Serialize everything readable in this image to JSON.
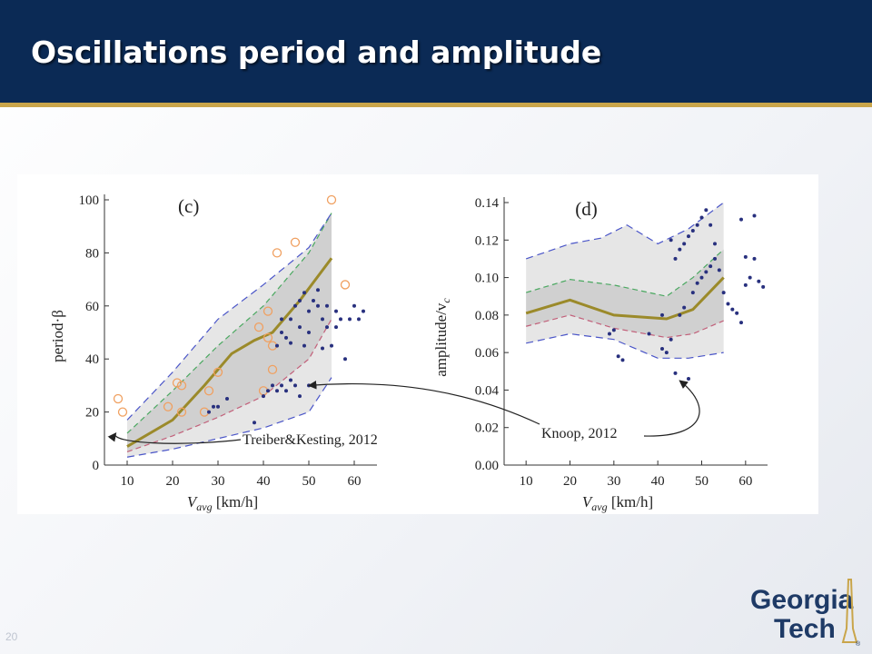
{
  "slide": {
    "title": "Oscillations period and amplitude",
    "page_number": "20"
  },
  "logo": {
    "line1": "Georgia",
    "line2": "Tech"
  },
  "colors": {
    "header": "#0b2a55",
    "gold": "#c9a54a",
    "mean_line": "#9b8a2a",
    "upper_green": "#4aa860",
    "lower_red": "#c2607a",
    "envelope_blue": "#4a55c8",
    "points_blue": "#28307e",
    "points_orange": "#f0a060"
  },
  "chart_data": [
    {
      "id": "c",
      "type": "line",
      "panel_label": "(c)",
      "xlabel": "V",
      "xlabel_sub": "avg",
      "xlabel_unit": "[km/h]",
      "ylabel": "period·β",
      "xlim": [
        5,
        65
      ],
      "ylim": [
        0,
        100
      ],
      "x_ticks": [
        10,
        20,
        30,
        40,
        50,
        60
      ],
      "y_ticks": [
        0,
        20,
        40,
        60,
        80,
        100
      ],
      "band_outer": {
        "upper": [
          [
            10,
            17
          ],
          [
            20,
            35
          ],
          [
            30,
            55
          ],
          [
            40,
            68
          ],
          [
            50,
            82
          ],
          [
            55,
            95
          ]
        ],
        "lower": [
          [
            10,
            3
          ],
          [
            20,
            6
          ],
          [
            30,
            10
          ],
          [
            40,
            14
          ],
          [
            50,
            20
          ],
          [
            55,
            33
          ]
        ]
      },
      "series": [
        {
          "style": "mean",
          "points": [
            [
              10,
              7
            ],
            [
              20,
              17
            ],
            [
              27,
              30
            ],
            [
              33,
              42
            ],
            [
              38,
              47
            ],
            [
              42,
              50
            ],
            [
              48,
              62
            ],
            [
              55,
              78
            ]
          ]
        },
        {
          "style": "upper_green",
          "points": [
            [
              10,
              12
            ],
            [
              20,
              28
            ],
            [
              30,
              45
            ],
            [
              40,
              60
            ],
            [
              50,
              80
            ],
            [
              55,
              95
            ]
          ]
        },
        {
          "style": "lower_red",
          "points": [
            [
              10,
              5
            ],
            [
              20,
              11
            ],
            [
              30,
              18
            ],
            [
              40,
              26
            ],
            [
              50,
              40
            ],
            [
              55,
              55
            ]
          ]
        },
        {
          "style": "envelope_blue",
          "points": [
            [
              10,
              17
            ],
            [
              20,
              35
            ],
            [
              30,
              55
            ],
            [
              40,
              68
            ],
            [
              50,
              82
            ],
            [
              55,
              95
            ]
          ]
        },
        {
          "style": "envelope_blue",
          "points": [
            [
              10,
              3
            ],
            [
              20,
              6
            ],
            [
              30,
              10
            ],
            [
              40,
              14
            ],
            [
              50,
              20
            ],
            [
              55,
              33
            ]
          ]
        }
      ],
      "scatter_orange": [
        [
          8,
          25
        ],
        [
          9,
          20
        ],
        [
          19,
          22
        ],
        [
          21,
          31
        ],
        [
          22,
          20
        ],
        [
          22,
          30
        ],
        [
          27,
          20
        ],
        [
          28,
          28
        ],
        [
          30,
          35
        ],
        [
          39,
          52
        ],
        [
          40,
          28
        ],
        [
          41,
          48
        ],
        [
          42,
          36
        ],
        [
          42,
          45
        ],
        [
          41,
          58
        ],
        [
          43,
          80
        ],
        [
          47,
          84
        ],
        [
          55,
          100
        ],
        [
          58,
          68
        ]
      ],
      "scatter_blue": [
        [
          28,
          20
        ],
        [
          29,
          22
        ],
        [
          30,
          22
        ],
        [
          32,
          25
        ],
        [
          38,
          16
        ],
        [
          40,
          26
        ],
        [
          41,
          28
        ],
        [
          42,
          30
        ],
        [
          43,
          28
        ],
        [
          44,
          30
        ],
        [
          45,
          28
        ],
        [
          46,
          32
        ],
        [
          47,
          30
        ],
        [
          48,
          26
        ],
        [
          50,
          30
        ],
        [
          43,
          45
        ],
        [
          44,
          50
        ],
        [
          45,
          48
        ],
        [
          46,
          55
        ],
        [
          47,
          60
        ],
        [
          48,
          62
        ],
        [
          49,
          65
        ],
        [
          50,
          58
        ],
        [
          51,
          62
        ],
        [
          52,
          60
        ],
        [
          53,
          55
        ],
        [
          54,
          60
        ],
        [
          55,
          45
        ],
        [
          56,
          52
        ],
        [
          58,
          40
        ],
        [
          44,
          55
        ],
        [
          46,
          46
        ],
        [
          48,
          52
        ],
        [
          50,
          50
        ],
        [
          52,
          66
        ],
        [
          54,
          52
        ],
        [
          57,
          55
        ],
        [
          59,
          55
        ],
        [
          60,
          60
        ],
        [
          61,
          55
        ],
        [
          62,
          58
        ],
        [
          56,
          58
        ],
        [
          53,
          44
        ],
        [
          49,
          45
        ]
      ],
      "annotation": "Treiber&Kesting, 2012"
    },
    {
      "id": "d",
      "type": "line",
      "panel_label": "(d)",
      "xlabel": "V",
      "xlabel_sub": "avg",
      "xlabel_unit": "[km/h]",
      "ylabel": "amplitude/v",
      "ylabel_sub": "c",
      "xlim": [
        5,
        65
      ],
      "ylim": [
        0,
        0.14
      ],
      "x_ticks": [
        10,
        20,
        30,
        40,
        50,
        60
      ],
      "y_ticks": [
        "0.00",
        "0.02",
        "0.04",
        "0.06",
        "0.08",
        "0.10",
        "0.12",
        "0.14"
      ],
      "band_outer": {
        "upper": [
          [
            10,
            0.11
          ],
          [
            20,
            0.118
          ],
          [
            27,
            0.121
          ],
          [
            33,
            0.128
          ],
          [
            40,
            0.118
          ],
          [
            47,
            0.126
          ],
          [
            55,
            0.14
          ]
        ],
        "lower": [
          [
            10,
            0.065
          ],
          [
            20,
            0.07
          ],
          [
            30,
            0.067
          ],
          [
            40,
            0.057
          ],
          [
            47,
            0.057
          ],
          [
            55,
            0.06
          ]
        ]
      },
      "series": [
        {
          "style": "mean",
          "points": [
            [
              10,
              0.081
            ],
            [
              20,
              0.088
            ],
            [
              30,
              0.08
            ],
            [
              42,
              0.078
            ],
            [
              48,
              0.083
            ],
            [
              55,
              0.1
            ]
          ]
        },
        {
          "style": "upper_green",
          "points": [
            [
              10,
              0.092
            ],
            [
              20,
              0.099
            ],
            [
              30,
              0.096
            ],
            [
              42,
              0.09
            ],
            [
              48,
              0.1
            ],
            [
              55,
              0.115
            ]
          ]
        },
        {
          "style": "lower_red",
          "points": [
            [
              10,
              0.074
            ],
            [
              20,
              0.08
            ],
            [
              30,
              0.073
            ],
            [
              42,
              0.068
            ],
            [
              48,
              0.07
            ],
            [
              55,
              0.077
            ]
          ]
        },
        {
          "style": "envelope_blue",
          "points": [
            [
              10,
              0.11
            ],
            [
              20,
              0.118
            ],
            [
              27,
              0.121
            ],
            [
              33,
              0.128
            ],
            [
              40,
              0.118
            ],
            [
              47,
              0.126
            ],
            [
              55,
              0.14
            ]
          ]
        },
        {
          "style": "envelope_blue",
          "points": [
            [
              10,
              0.065
            ],
            [
              20,
              0.07
            ],
            [
              30,
              0.067
            ],
            [
              40,
              0.057
            ],
            [
              47,
              0.057
            ],
            [
              55,
              0.06
            ]
          ]
        }
      ],
      "scatter_blue": [
        [
          29,
          0.07
        ],
        [
          30,
          0.072
        ],
        [
          31,
          0.058
        ],
        [
          32,
          0.056
        ],
        [
          38,
          0.07
        ],
        [
          41,
          0.062
        ],
        [
          41,
          0.08
        ],
        [
          42,
          0.06
        ],
        [
          43,
          0.067
        ],
        [
          44,
          0.049
        ],
        [
          45,
          0.08
        ],
        [
          46,
          0.084
        ],
        [
          47,
          0.046
        ],
        [
          48,
          0.092
        ],
        [
          49,
          0.097
        ],
        [
          50,
          0.1
        ],
        [
          51,
          0.103
        ],
        [
          52,
          0.106
        ],
        [
          53,
          0.11
        ],
        [
          54,
          0.104
        ],
        [
          44,
          0.11
        ],
        [
          45,
          0.115
        ],
        [
          46,
          0.118
        ],
        [
          47,
          0.122
        ],
        [
          48,
          0.125
        ],
        [
          49,
          0.128
        ],
        [
          50,
          0.132
        ],
        [
          51,
          0.136
        ],
        [
          52,
          0.128
        ],
        [
          53,
          0.118
        ],
        [
          43,
          0.12
        ],
        [
          56,
          0.086
        ],
        [
          57,
          0.083
        ],
        [
          58,
          0.081
        ],
        [
          59,
          0.076
        ],
        [
          60,
          0.096
        ],
        [
          61,
          0.1
        ],
        [
          62,
          0.11
        ],
        [
          63,
          0.098
        ],
        [
          64,
          0.095
        ],
        [
          59,
          0.131
        ],
        [
          62,
          0.133
        ],
        [
          60,
          0.111
        ],
        [
          55,
          0.092
        ]
      ],
      "annotation": "Knoop, 2012"
    }
  ]
}
